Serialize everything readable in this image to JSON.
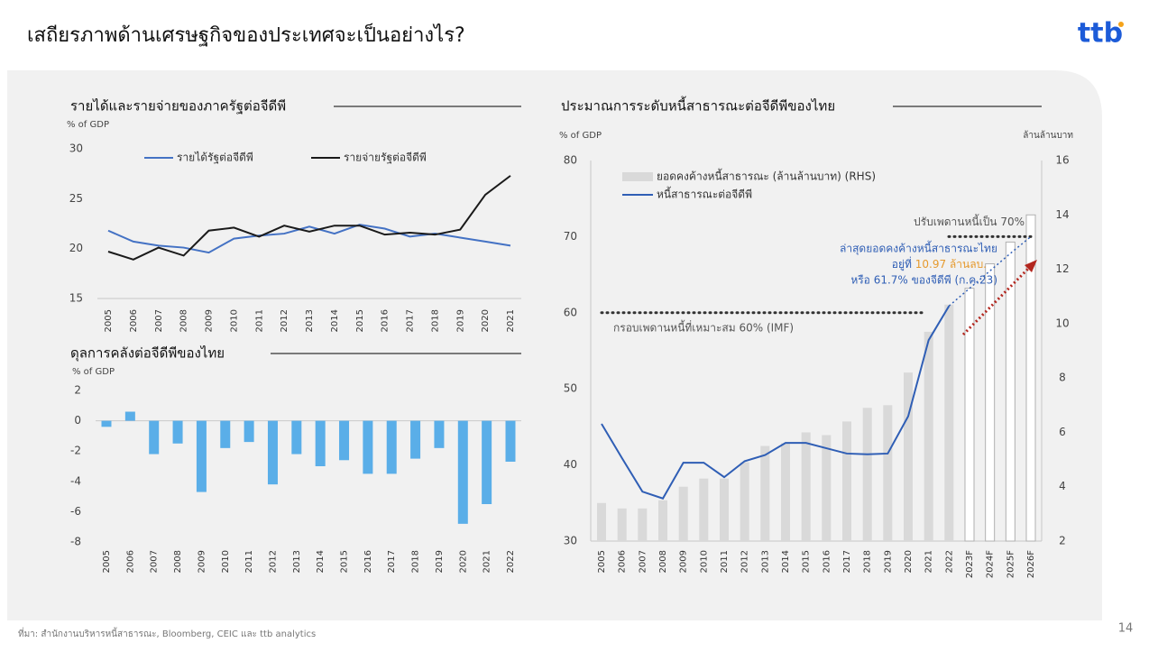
{
  "title": "เสถียรภาพด้านเศรษฐกิจของประเทศจะเป็นอย่างไร?",
  "logo": "ttb",
  "source": "ที่มา: สำนักงานบริหารหนี้สาธารณะ, Bloomberg, CEIC และ ttb analytics",
  "page_number": "14",
  "chart_data": [
    {
      "type": "line",
      "title": "รายได้และรายจ่ายของภาครัฐต่อจีดีพี",
      "y_label": "% of GDP",
      "categories": [
        "2005",
        "2006",
        "2007",
        "2008",
        "2009",
        "2010",
        "2011",
        "2012",
        "2013",
        "2014",
        "2015",
        "2016",
        "2017",
        "2018",
        "2019",
        "2020",
        "2021"
      ],
      "series": [
        {
          "name": "รายได้รัฐต่อจีดีพี",
          "color": "#4472c4",
          "values": [
            21.8,
            20.7,
            20.3,
            20.1,
            19.6,
            21.0,
            21.3,
            21.5,
            22.2,
            21.5,
            22.4,
            22.0,
            21.2,
            21.5,
            21.1,
            20.7,
            20.3
          ]
        },
        {
          "name": "รายจ่ายรัฐต่อจีดีพี",
          "color": "#1a1a1a",
          "values": [
            19.7,
            18.9,
            20.1,
            19.3,
            21.8,
            22.1,
            21.2,
            22.3,
            21.7,
            22.3,
            22.3,
            21.4,
            21.6,
            21.4,
            21.9,
            25.4,
            27.3
          ]
        }
      ],
      "ylim": [
        15,
        30
      ],
      "yticks": [
        15,
        20,
        25,
        30
      ]
    },
    {
      "type": "bar",
      "title": "ดุลการคลังต่อจีดีพีของไทย",
      "y_label": "% of GDP",
      "categories": [
        "2005",
        "2006",
        "2007",
        "2008",
        "2009",
        "2010",
        "2011",
        "2012",
        "2013",
        "2014",
        "2015",
        "2016",
        "2017",
        "2018",
        "2019",
        "2020",
        "2021",
        "2022"
      ],
      "values": [
        -0.4,
        0.6,
        -2.2,
        -1.5,
        -4.7,
        -1.8,
        -1.4,
        -4.2,
        -2.2,
        -3.0,
        -2.6,
        -3.5,
        -3.5,
        -2.5,
        -1.8,
        -6.8,
        -5.5,
        -2.7
      ],
      "color": "#5aaee8",
      "ylim": [
        -8,
        2
      ],
      "yticks": [
        -8,
        -6,
        -4,
        -2,
        0,
        2
      ]
    },
    {
      "type": "combo",
      "title": "ประมาณการระดับหนี้สาธารณะต่อจีดีพีของไทย",
      "y_label": "% of GDP",
      "y2_label": "ล้านล้านบาท",
      "categories": [
        "2005",
        "2006",
        "2007",
        "2008",
        "2009",
        "2010",
        "2011",
        "2012",
        "2013",
        "2014",
        "2015",
        "2016",
        "2017",
        "2018",
        "2019",
        "2020",
        "2021",
        "2022",
        "2023F",
        "2024F",
        "2025F",
        "2026F"
      ],
      "series": [
        {
          "name": "ยอดคงค้างหนี้สาธารณะ (ล้านล้านบาท) (RHS)",
          "kind": "bar",
          "axis": "y2",
          "color": "#d9d9d9",
          "values": [
            3.4,
            3.2,
            3.2,
            3.5,
            4.0,
            4.3,
            4.3,
            4.9,
            5.5,
            5.6,
            6.0,
            5.9,
            6.4,
            6.9,
            7.0,
            8.2,
            9.7,
            10.7,
            null,
            null,
            null,
            null
          ]
        },
        {
          "kind": "bar",
          "axis": "y2",
          "color": "#b0b0b0",
          "fill": "#ffffff",
          "values": [
            null,
            null,
            null,
            null,
            null,
            null,
            null,
            null,
            null,
            null,
            null,
            null,
            null,
            null,
            null,
            null,
            null,
            null,
            11.3,
            12.2,
            13.0,
            14.0
          ]
        },
        {
          "name": "หนี้สาธารณะต่อจีดีพี",
          "kind": "line",
          "color": "#2f5eb5",
          "values": [
            45.4,
            40.9,
            36.5,
            35.6,
            40.3,
            40.3,
            38.4,
            40.5,
            41.3,
            42.9,
            42.9,
            42.2,
            41.5,
            41.4,
            41.5,
            46.4,
            56.4,
            60.9,
            null,
            null,
            null,
            null
          ]
        },
        {
          "kind": "line",
          "dotted": true,
          "color": "#2f5eb5",
          "values": [
            null,
            null,
            null,
            null,
            null,
            null,
            null,
            null,
            null,
            null,
            null,
            null,
            null,
            null,
            null,
            null,
            null,
            60.9,
            63.2,
            65.5,
            67.8,
            70
          ]
        }
      ],
      "ref_lines": [
        {
          "value": 60,
          "label": "กรอบเพดานหนี้ที่เหมาะสม 60% (IMF)"
        },
        {
          "value": 70,
          "label": "ปรับเพดานหนี้เป็น 70%"
        }
      ],
      "annotation": {
        "line1": "ล่าสุดยอดคงค้างหนี้สาธารณะไทย",
        "line2_prefix": "อยู่ที่ ",
        "line2_highlight": "10.97 ล้านลบ.",
        "line3": "หรือ 61.7% ของจีดีพี (ก.ค.23)"
      },
      "ylim": [
        30,
        80
      ],
      "yticks": [
        30,
        40,
        50,
        60,
        70,
        80
      ],
      "y2lim": [
        2,
        16
      ],
      "y2ticks": [
        2,
        4,
        6,
        8,
        10,
        12,
        14,
        16
      ]
    }
  ]
}
